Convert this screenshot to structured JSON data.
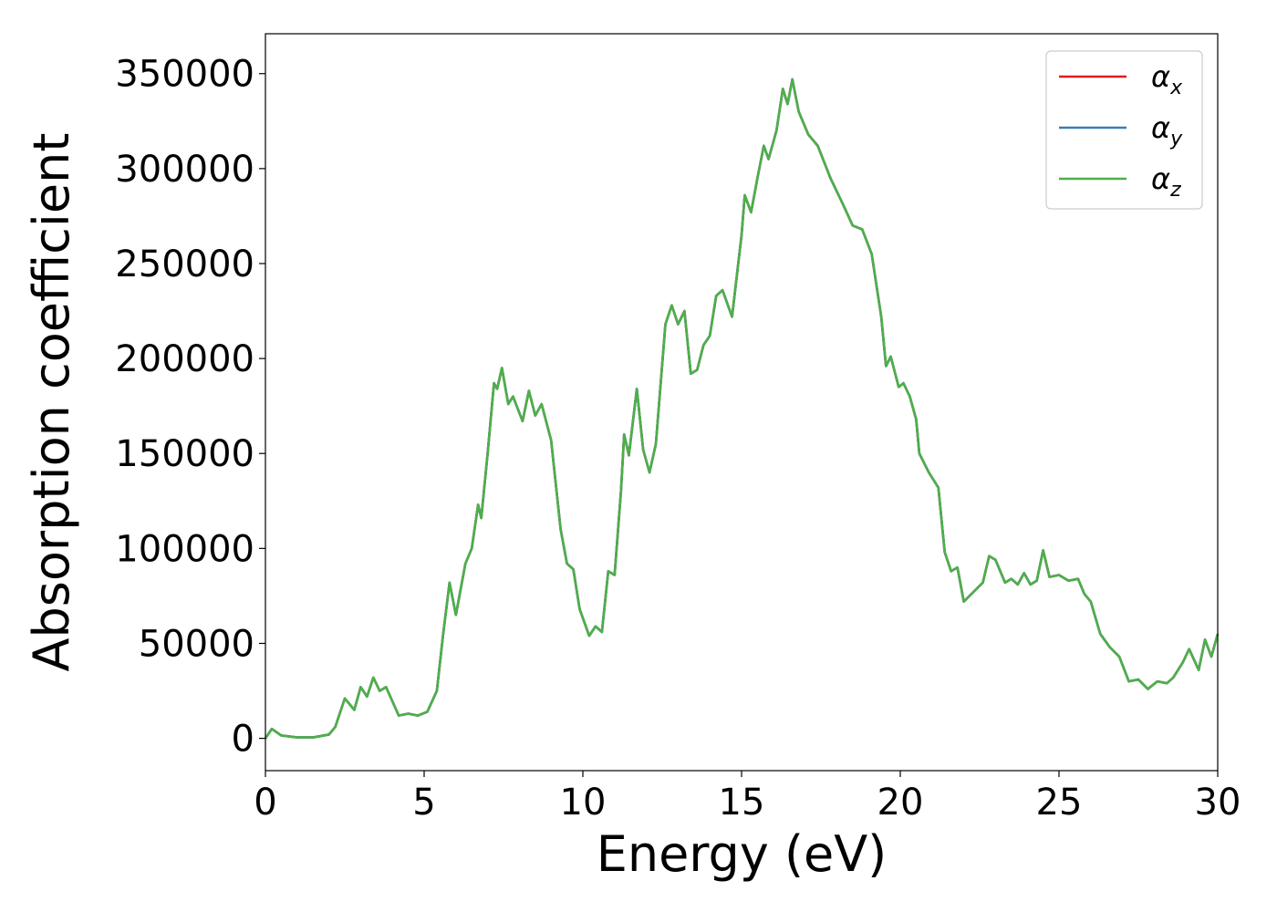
{
  "chart_data": {
    "type": "line",
    "xlabel": "Energy (eV)",
    "ylabel": "Absorption coefficient",
    "x": [
      0,
      0.2,
      0.5,
      1,
      1.5,
      2,
      2.2,
      2.5,
      2.8,
      3.0,
      3.2,
      3.4,
      3.6,
      3.8,
      4.2,
      4.5,
      4.8,
      5.1,
      5.4,
      5.6,
      5.8,
      6.0,
      6.3,
      6.5,
      6.7,
      6.8,
      7.0,
      7.2,
      7.3,
      7.45,
      7.65,
      7.8,
      8.1,
      8.3,
      8.5,
      8.7,
      9.0,
      9.3,
      9.5,
      9.7,
      9.9,
      10.2,
      10.4,
      10.6,
      10.8,
      11.0,
      11.2,
      11.3,
      11.45,
      11.7,
      11.9,
      12.1,
      12.3,
      12.6,
      12.8,
      13.0,
      13.2,
      13.4,
      13.6,
      13.8,
      14.0,
      14.2,
      14.4,
      14.7,
      15.0,
      15.1,
      15.3,
      15.5,
      15.7,
      15.85,
      16.1,
      16.3,
      16.45,
      16.6,
      16.8,
      17.1,
      17.4,
      17.8,
      18.2,
      18.5,
      18.8,
      19.1,
      19.4,
      19.55,
      19.7,
      19.95,
      20.1,
      20.3,
      20.5,
      20.6,
      20.9,
      21.2,
      21.4,
      21.6,
      21.8,
      22.0,
      22.3,
      22.6,
      22.8,
      23.0,
      23.3,
      23.5,
      23.7,
      23.9,
      24.1,
      24.3,
      24.5,
      24.7,
      25.0,
      25.3,
      25.6,
      25.8,
      26.0,
      26.3,
      26.6,
      26.9,
      27.2,
      27.5,
      27.8,
      28.1,
      28.4,
      28.6,
      28.9,
      29.1,
      29.4,
      29.6,
      29.8,
      30.0
    ],
    "series": [
      {
        "name": "αx",
        "color": "#e41a1c",
        "values": [
          0,
          5000,
          1500,
          500,
          500,
          2000,
          6000,
          21000,
          15000,
          27000,
          22000,
          32000,
          25000,
          27000,
          12000,
          13000,
          12000,
          14000,
          25000,
          55000,
          82000,
          65000,
          92000,
          100000,
          123000,
          116000,
          150000,
          187000,
          184000,
          195000,
          176000,
          180000,
          167000,
          183000,
          170000,
          176000,
          157000,
          110000,
          92000,
          89000,
          68000,
          54000,
          59000,
          56000,
          88000,
          86000,
          130000,
          160000,
          149000,
          184000,
          152000,
          140000,
          155000,
          218000,
          228000,
          218000,
          225000,
          192000,
          194000,
          207000,
          212000,
          233000,
          236000,
          222000,
          265000,
          286000,
          277000,
          295000,
          312000,
          305000,
          320000,
          342000,
          334000,
          347000,
          330000,
          318000,
          312000,
          295000,
          281000,
          270000,
          268000,
          255000,
          222000,
          196000,
          201000,
          185000,
          187000,
          180000,
          168000,
          150000,
          140000,
          132000,
          98000,
          88000,
          90000,
          72000,
          77000,
          82000,
          96000,
          94000,
          82000,
          84000,
          81000,
          87000,
          81000,
          83000,
          99000,
          85000,
          86000,
          83000,
          84000,
          76000,
          72000,
          55000,
          48000,
          43000,
          30000,
          31000,
          26000,
          30000,
          29000,
          32000,
          40000,
          47000,
          36000,
          52000,
          43000,
          55000
        ]
      },
      {
        "name": "αy",
        "color": "#377eb8",
        "values": [
          0,
          5000,
          1500,
          500,
          500,
          2000,
          6000,
          21000,
          15000,
          27000,
          22000,
          32000,
          25000,
          27000,
          12000,
          13000,
          12000,
          14000,
          25000,
          55000,
          82000,
          65000,
          92000,
          100000,
          123000,
          116000,
          150000,
          187000,
          184000,
          195000,
          176000,
          180000,
          167000,
          183000,
          170000,
          176000,
          157000,
          110000,
          92000,
          89000,
          68000,
          54000,
          59000,
          56000,
          88000,
          86000,
          130000,
          160000,
          149000,
          184000,
          152000,
          140000,
          155000,
          218000,
          228000,
          218000,
          225000,
          192000,
          194000,
          207000,
          212000,
          233000,
          236000,
          222000,
          265000,
          286000,
          277000,
          295000,
          312000,
          305000,
          320000,
          342000,
          334000,
          347000,
          330000,
          318000,
          312000,
          295000,
          281000,
          270000,
          268000,
          255000,
          222000,
          196000,
          201000,
          185000,
          187000,
          180000,
          168000,
          150000,
          140000,
          132000,
          98000,
          88000,
          90000,
          72000,
          77000,
          82000,
          96000,
          94000,
          82000,
          84000,
          81000,
          87000,
          81000,
          83000,
          99000,
          85000,
          86000,
          83000,
          84000,
          76000,
          72000,
          55000,
          48000,
          43000,
          30000,
          31000,
          26000,
          30000,
          29000,
          32000,
          40000,
          47000,
          36000,
          52000,
          43000,
          55000
        ]
      },
      {
        "name": "αz",
        "color": "#4daf4a",
        "values": [
          0,
          5000,
          1500,
          500,
          500,
          2000,
          6000,
          21000,
          15000,
          27000,
          22000,
          32000,
          25000,
          27000,
          12000,
          13000,
          12000,
          14000,
          25000,
          55000,
          82000,
          65000,
          92000,
          100000,
          123000,
          116000,
          150000,
          187000,
          184000,
          195000,
          176000,
          180000,
          167000,
          183000,
          170000,
          176000,
          157000,
          110000,
          92000,
          89000,
          68000,
          54000,
          59000,
          56000,
          88000,
          86000,
          130000,
          160000,
          149000,
          184000,
          152000,
          140000,
          155000,
          218000,
          228000,
          218000,
          225000,
          192000,
          194000,
          207000,
          212000,
          233000,
          236000,
          222000,
          265000,
          286000,
          277000,
          295000,
          312000,
          305000,
          320000,
          342000,
          334000,
          347000,
          330000,
          318000,
          312000,
          295000,
          281000,
          270000,
          268000,
          255000,
          222000,
          196000,
          201000,
          185000,
          187000,
          180000,
          168000,
          150000,
          140000,
          132000,
          98000,
          88000,
          90000,
          72000,
          77000,
          82000,
          96000,
          94000,
          82000,
          84000,
          81000,
          87000,
          81000,
          83000,
          99000,
          85000,
          86000,
          83000,
          84000,
          76000,
          72000,
          55000,
          48000,
          43000,
          30000,
          31000,
          26000,
          30000,
          29000,
          32000,
          40000,
          47000,
          36000,
          52000,
          43000,
          55000
        ]
      }
    ],
    "xlim": [
      0,
      30
    ],
    "xticks": [
      0,
      5,
      10,
      15,
      20,
      25,
      30
    ],
    "ylim": [
      -17000,
      371000
    ],
    "yticks": [
      0,
      50000,
      100000,
      150000,
      200000,
      250000,
      300000,
      350000
    ],
    "legend": "upper right"
  }
}
